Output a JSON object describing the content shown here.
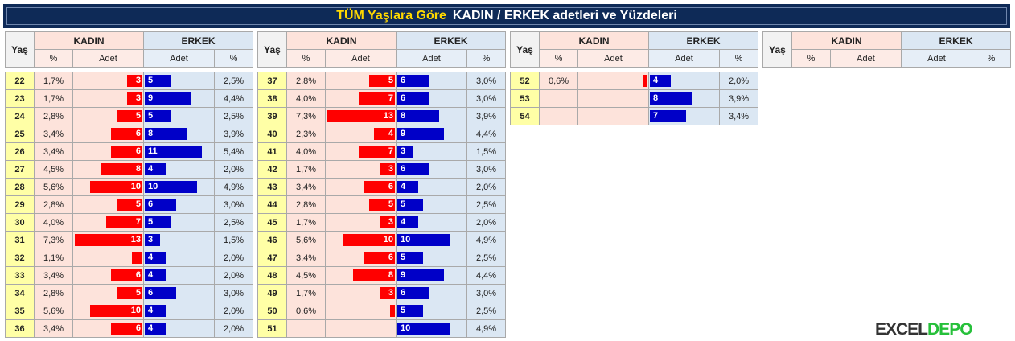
{
  "banner": {
    "highlight": "TÜM Yaşlara Göre",
    "rest": "KADIN / ERKEK adetleri  ve  Yüzdeleri"
  },
  "headers": {
    "yas": "Yaş",
    "kadin": "KADIN",
    "erkek": "ERKEK",
    "pct": "%",
    "adet": "Adet"
  },
  "colors": {
    "female_bar": "#ff0000",
    "male_bar": "#0000c8",
    "age_cell": "#ffffa6"
  },
  "max_count": 13,
  "tables": [
    {
      "rows": [
        {
          "yas": "22",
          "kp": "1,7%",
          "ka": "3",
          "ea": "5",
          "ep": "2,5%"
        },
        {
          "yas": "23",
          "kp": "1,7%",
          "ka": "3",
          "ea": "9",
          "ep": "4,4%"
        },
        {
          "yas": "24",
          "kp": "2,8%",
          "ka": "5",
          "ea": "5",
          "ep": "2,5%"
        },
        {
          "yas": "25",
          "kp": "3,4%",
          "ka": "6",
          "ea": "8",
          "ep": "3,9%"
        },
        {
          "yas": "26",
          "kp": "3,4%",
          "ka": "6",
          "ea": "11",
          "ep": "5,4%"
        },
        {
          "yas": "27",
          "kp": "4,5%",
          "ka": "8",
          "ea": "4",
          "ep": "2,0%"
        },
        {
          "yas": "28",
          "kp": "5,6%",
          "ka": "10",
          "ea": "10",
          "ep": "4,9%"
        },
        {
          "yas": "29",
          "kp": "2,8%",
          "ka": "5",
          "ea": "6",
          "ep": "3,0%"
        },
        {
          "yas": "30",
          "kp": "4,0%",
          "ka": "7",
          "ea": "5",
          "ep": "2,5%"
        },
        {
          "yas": "31",
          "kp": "7,3%",
          "ka": "13",
          "ea": "3",
          "ep": "1,5%"
        },
        {
          "yas": "32",
          "kp": "1,1%",
          "ka": "2",
          "ea": "4",
          "ep": "2,0%"
        },
        {
          "yas": "33",
          "kp": "3,4%",
          "ka": "6",
          "ea": "4",
          "ep": "2,0%"
        },
        {
          "yas": "34",
          "kp": "2,8%",
          "ka": "5",
          "ea": "6",
          "ep": "3,0%"
        },
        {
          "yas": "35",
          "kp": "5,6%",
          "ka": "10",
          "ea": "4",
          "ep": "2,0%"
        },
        {
          "yas": "36",
          "kp": "3,4%",
          "ka": "6",
          "ea": "4",
          "ep": "2,0%"
        }
      ]
    },
    {
      "rows": [
        {
          "yas": "37",
          "kp": "2,8%",
          "ka": "5",
          "ea": "6",
          "ep": "3,0%"
        },
        {
          "yas": "38",
          "kp": "4,0%",
          "ka": "7",
          "ea": "6",
          "ep": "3,0%"
        },
        {
          "yas": "39",
          "kp": "7,3%",
          "ka": "13",
          "ea": "8",
          "ep": "3,9%"
        },
        {
          "yas": "40",
          "kp": "2,3%",
          "ka": "4",
          "ea": "9",
          "ep": "4,4%"
        },
        {
          "yas": "41",
          "kp": "4,0%",
          "ka": "7",
          "ea": "3",
          "ep": "1,5%"
        },
        {
          "yas": "42",
          "kp": "1,7%",
          "ka": "3",
          "ea": "6",
          "ep": "3,0%"
        },
        {
          "yas": "43",
          "kp": "3,4%",
          "ka": "6",
          "ea": "4",
          "ep": "2,0%"
        },
        {
          "yas": "44",
          "kp": "2,8%",
          "ka": "5",
          "ea": "5",
          "ep": "2,5%"
        },
        {
          "yas": "45",
          "kp": "1,7%",
          "ka": "3",
          "ea": "4",
          "ep": "2,0%"
        },
        {
          "yas": "46",
          "kp": "5,6%",
          "ka": "10",
          "ea": "10",
          "ep": "4,9%"
        },
        {
          "yas": "47",
          "kp": "3,4%",
          "ka": "6",
          "ea": "5",
          "ep": "2,5%"
        },
        {
          "yas": "48",
          "kp": "4,5%",
          "ka": "8",
          "ea": "9",
          "ep": "4,4%"
        },
        {
          "yas": "49",
          "kp": "1,7%",
          "ka": "3",
          "ea": "6",
          "ep": "3,0%"
        },
        {
          "yas": "50",
          "kp": "0,6%",
          "ka": "1",
          "ea": "5",
          "ep": "2,5%"
        },
        {
          "yas": "51",
          "kp": "",
          "ka": "",
          "ea": "10",
          "ep": "4,9%"
        }
      ]
    },
    {
      "rows": [
        {
          "yas": "52",
          "kp": "0,6%",
          "ka": "1",
          "ea": "4",
          "ep": "2,0%"
        },
        {
          "yas": "53",
          "kp": "",
          "ka": "",
          "ea": "8",
          "ep": "3,9%"
        },
        {
          "yas": "54",
          "kp": "",
          "ka": "",
          "ea": "7",
          "ep": "3,4%"
        }
      ]
    },
    {
      "rows": []
    }
  ],
  "logo": {
    "part1": "EXCEL",
    "part2": "DEPO"
  }
}
